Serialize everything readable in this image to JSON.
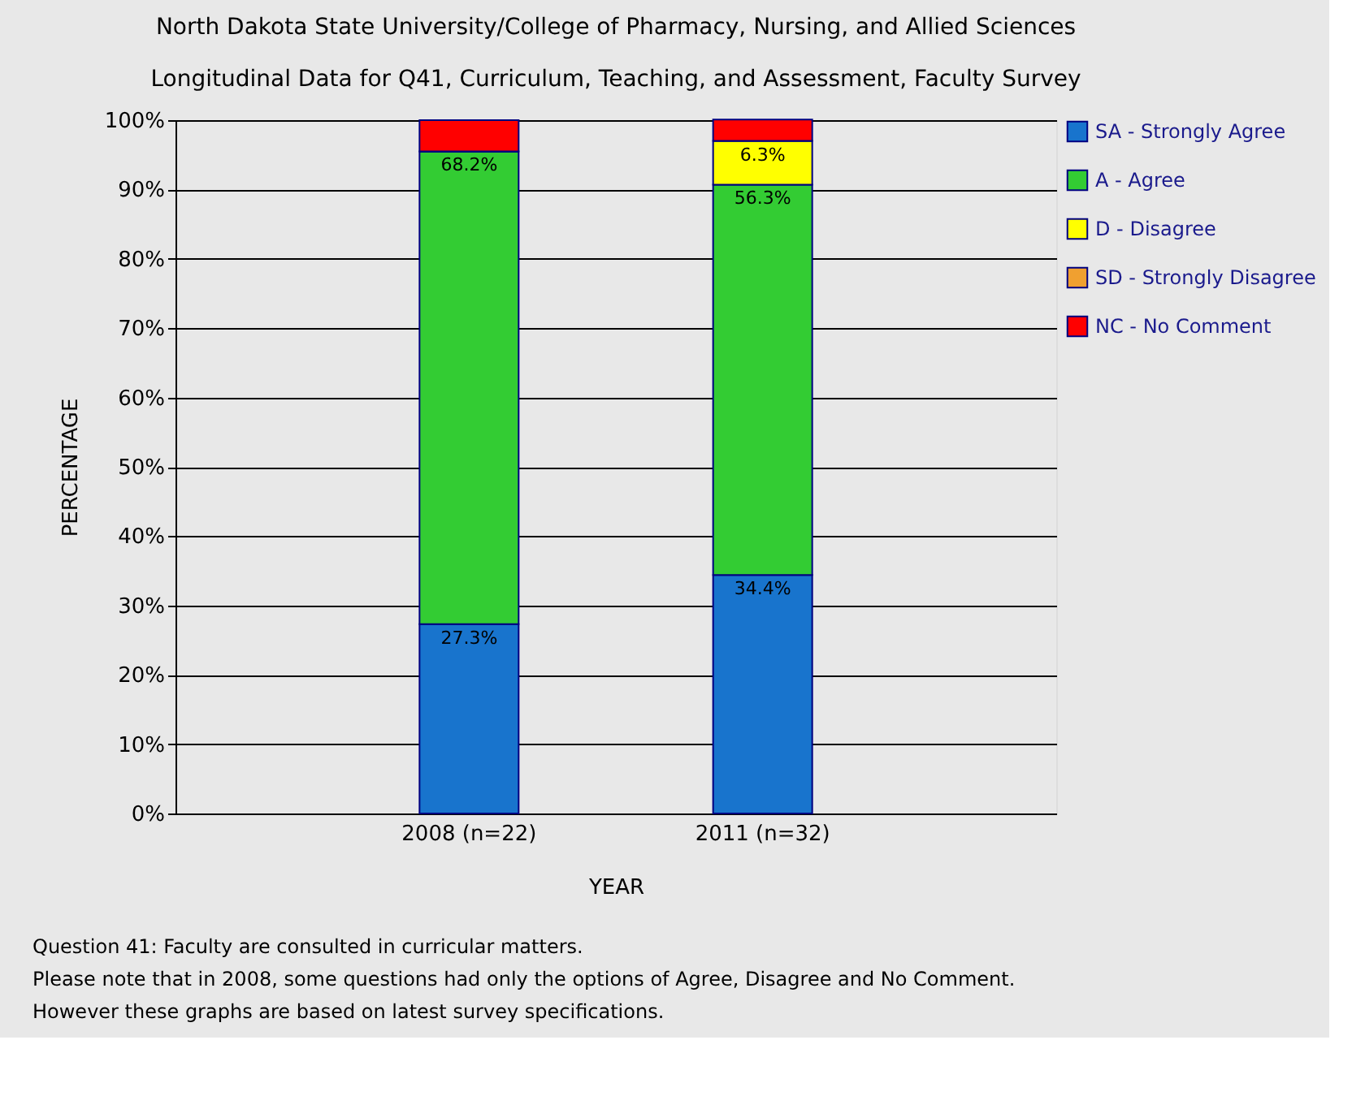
{
  "chart_data": {
    "type": "bar",
    "stacked": true,
    "title": "North Dakota State University/College of Pharmacy, Nursing, and Allied Sciences",
    "subtitle": "Longitudinal Data for Q41, Curriculum, Teaching, and Assessment, Faculty Survey",
    "xlabel": "YEAR",
    "ylabel": "PERCENTAGE",
    "categories": [
      "2008 (n=22)",
      "2011 (n=32)"
    ],
    "series": [
      {
        "name": "SA - Strongly Agree",
        "color": "#1874cd",
        "values": [
          27.3,
          34.4
        ],
        "value_labels": [
          "27.3%",
          "34.4%"
        ]
      },
      {
        "name": "A - Agree",
        "color": "#33cc33",
        "values": [
          68.2,
          56.3
        ],
        "value_labels": [
          "68.2%",
          "56.3%"
        ]
      },
      {
        "name": "D - Disagree",
        "color": "#ffff00",
        "values": [
          0,
          6.3
        ],
        "value_labels": [
          null,
          "6.3%"
        ]
      },
      {
        "name": "SD - Strongly Disagree",
        "color": "#f0a030",
        "values": [
          0,
          0
        ],
        "value_labels": [
          null,
          null
        ]
      },
      {
        "name": "NC - No Comment",
        "color": "#ff0000",
        "values": [
          4.5,
          3.1
        ],
        "value_labels": [
          null,
          null
        ]
      }
    ],
    "ylim": [
      0,
      100
    ],
    "yticks": [
      {
        "value": 0,
        "label": "0%"
      },
      {
        "value": 10,
        "label": "10%"
      },
      {
        "value": 20,
        "label": "20%"
      },
      {
        "value": 30,
        "label": "30%"
      },
      {
        "value": 40,
        "label": "40%"
      },
      {
        "value": 50,
        "label": "50%"
      },
      {
        "value": 60,
        "label": "60%"
      },
      {
        "value": 70,
        "label": "70%"
      },
      {
        "value": 80,
        "label": "80%"
      },
      {
        "value": 90,
        "label": "90%"
      },
      {
        "value": 100,
        "label": "100%"
      }
    ],
    "grid": "y",
    "legend": "right",
    "annotations": [
      "Question 41: Faculty are consulted in curricular matters.",
      "Please note that in 2008, some questions had only the options of Agree, Disagree and No Comment.",
      "However these graphs are based on latest survey specifications."
    ]
  }
}
